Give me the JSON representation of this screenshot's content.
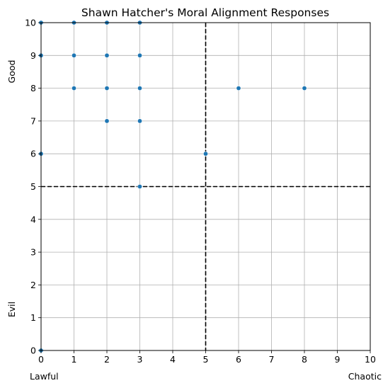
{
  "chart_data": {
    "type": "scatter",
    "title": "Shawn Hatcher's Moral Alignment Responses",
    "xlabel": "",
    "ylabel": "",
    "xlim": [
      0,
      10
    ],
    "ylim": [
      0,
      10
    ],
    "xticks": [
      0,
      1,
      2,
      3,
      4,
      5,
      6,
      7,
      8,
      9,
      10
    ],
    "yticks": [
      0,
      1,
      2,
      3,
      4,
      5,
      6,
      7,
      8,
      9,
      10
    ],
    "grid": true,
    "x_axis_end_labels": {
      "left": "Lawful",
      "right": "Chaotic"
    },
    "y_axis_end_labels": {
      "top": "Good",
      "bottom": "Evil"
    },
    "reference_lines": [
      {
        "orientation": "vertical",
        "value": 5,
        "style": "dashed",
        "color": "#000000"
      },
      {
        "orientation": "horizontal",
        "value": 5,
        "style": "dashed",
        "color": "#000000"
      }
    ],
    "marker_color": "#1f77b4",
    "grid_color": "#b0b0b0",
    "points": [
      {
        "x": 0,
        "y": 10
      },
      {
        "x": 1,
        "y": 10
      },
      {
        "x": 2,
        "y": 10
      },
      {
        "x": 3,
        "y": 10
      },
      {
        "x": 0,
        "y": 9
      },
      {
        "x": 1,
        "y": 9
      },
      {
        "x": 2,
        "y": 9
      },
      {
        "x": 3,
        "y": 9
      },
      {
        "x": 1,
        "y": 8
      },
      {
        "x": 2,
        "y": 8
      },
      {
        "x": 3,
        "y": 8
      },
      {
        "x": 6,
        "y": 8
      },
      {
        "x": 8,
        "y": 8
      },
      {
        "x": 2,
        "y": 7
      },
      {
        "x": 3,
        "y": 7
      },
      {
        "x": 0,
        "y": 6
      },
      {
        "x": 5,
        "y": 6
      },
      {
        "x": 3,
        "y": 5
      },
      {
        "x": 0,
        "y": 0
      }
    ]
  }
}
